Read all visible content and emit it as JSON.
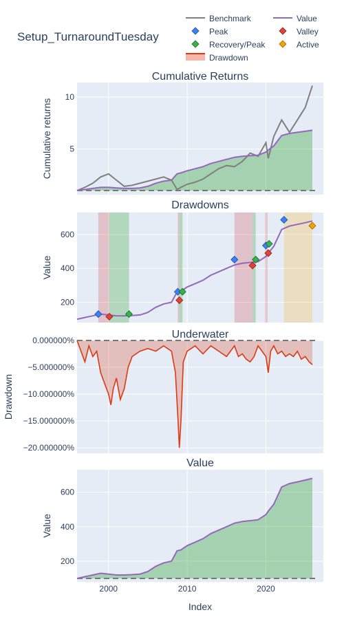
{
  "title": "Setup_TurnaroundTuesday",
  "legend": {
    "benchmark": "Benchmark",
    "value": "Value",
    "peak": "Peak",
    "valley": "Valley",
    "recovery": "Recovery/Peak",
    "active": "Active",
    "drawdown": "Drawdown"
  },
  "colors": {
    "benchmark": "#7f7f7f",
    "value": "#9467bd",
    "peak": "#1f77b4",
    "valley": "#d62728",
    "recovery": "#2ca02c",
    "active": "#ffaa00",
    "drawdown": "#dc3912",
    "plot_bg": "#e5ecf6",
    "text": "#2a3f5f"
  },
  "xlabel": "Index",
  "x_ticks": [
    "2000",
    "2010",
    "2020"
  ],
  "chart_data": [
    {
      "type": "line",
      "title": "Cumulative Returns",
      "ylabel": "Cumulative returns",
      "y_ticks": [
        "5",
        "10"
      ],
      "ylim": [
        0.6,
        11.4
      ],
      "baseline": 1,
      "x": [
        1996.0,
        1997.0,
        1998.0,
        1999.0,
        2000.0,
        2001.0,
        2002.0,
        2003.0,
        2004.0,
        2005.0,
        2006.0,
        2007.0,
        2008.0,
        2008.7,
        2009.2,
        2010.0,
        2011.0,
        2012.0,
        2013.0,
        2014.0,
        2015.0,
        2016.0,
        2017.0,
        2018.0,
        2019.0,
        2020.0,
        2020.3,
        2021.0,
        2022.0,
        2023.0,
        2024.0,
        2025.0,
        2025.9
      ],
      "series": [
        {
          "name": "Benchmark",
          "values": [
            1.0,
            1.3,
            1.7,
            2.3,
            2.6,
            2.0,
            1.4,
            1.5,
            1.7,
            1.9,
            2.1,
            2.3,
            2.0,
            1.1,
            1.3,
            1.6,
            1.8,
            2.1,
            2.6,
            3.1,
            3.4,
            3.3,
            3.8,
            4.6,
            4.3,
            5.6,
            4.1,
            6.2,
            7.8,
            6.6,
            7.8,
            9.0,
            11.1
          ]
        },
        {
          "name": "Value",
          "values": [
            1.0,
            1.1,
            1.2,
            1.3,
            1.3,
            1.25,
            1.2,
            1.2,
            1.25,
            1.4,
            1.7,
            1.9,
            2.0,
            2.6,
            2.7,
            2.9,
            3.1,
            3.3,
            3.6,
            3.8,
            4.0,
            4.2,
            4.3,
            4.35,
            4.4,
            4.7,
            4.9,
            5.3,
            6.3,
            6.5,
            6.6,
            6.7,
            6.8
          ]
        }
      ]
    },
    {
      "type": "line",
      "title": "Drawdowns",
      "ylabel": "Value",
      "y_ticks": [
        "200",
        "400",
        "600"
      ],
      "ylim": [
        80,
        730
      ],
      "x": [
        1996.0,
        1997.0,
        1998.0,
        1999.0,
        2000.0,
        2001.0,
        2002.0,
        2003.0,
        2004.0,
        2005.0,
        2006.0,
        2007.0,
        2008.0,
        2008.7,
        2009.2,
        2010.0,
        2011.0,
        2012.0,
        2013.0,
        2014.0,
        2015.0,
        2016.0,
        2017.0,
        2018.0,
        2019.0,
        2020.0,
        2020.3,
        2021.0,
        2022.0,
        2023.0,
        2024.0,
        2025.0,
        2025.9
      ],
      "values": [
        100,
        110,
        120,
        130,
        125,
        120,
        120,
        122,
        125,
        140,
        170,
        190,
        200,
        260,
        265,
        290,
        310,
        330,
        360,
        380,
        400,
        420,
        430,
        435,
        440,
        470,
        490,
        530,
        630,
        650,
        660,
        670,
        680
      ],
      "drawdown_periods": [
        {
          "start": 1998.7,
          "end": 2000.1,
          "status": "recovered"
        },
        {
          "start": 2000.1,
          "end": 2002.6,
          "status": "recovery"
        },
        {
          "start": 2008.8,
          "end": 2009.0,
          "status": "recovered"
        },
        {
          "start": 2009.0,
          "end": 2009.4,
          "status": "recovery"
        },
        {
          "start": 2016.0,
          "end": 2018.3,
          "status": "recovered"
        },
        {
          "start": 2018.3,
          "end": 2018.7,
          "status": "recovery"
        },
        {
          "start": 2019.9,
          "end": 2020.2,
          "status": "recovered"
        },
        {
          "start": 2022.3,
          "end": 2025.9,
          "status": "active"
        }
      ],
      "markers": [
        {
          "kind": "peak",
          "x": 1998.7,
          "y": 130
        },
        {
          "kind": "valley",
          "x": 2000.1,
          "y": 115
        },
        {
          "kind": "recovery",
          "x": 2002.6,
          "y": 130
        },
        {
          "kind": "peak",
          "x": 2008.8,
          "y": 262
        },
        {
          "kind": "valley",
          "x": 2009.0,
          "y": 212
        },
        {
          "kind": "recovery",
          "x": 2009.4,
          "y": 262
        },
        {
          "kind": "peak",
          "x": 2016.0,
          "y": 452
        },
        {
          "kind": "valley",
          "x": 2018.3,
          "y": 417
        },
        {
          "kind": "recovery",
          "x": 2018.7,
          "y": 452
        },
        {
          "kind": "peak",
          "x": 2020.0,
          "y": 535
        },
        {
          "kind": "valley",
          "x": 2020.3,
          "y": 490
        },
        {
          "kind": "recovery",
          "x": 2020.4,
          "y": 545
        },
        {
          "kind": "peak",
          "x": 2022.3,
          "y": 687
        },
        {
          "kind": "active",
          "x": 2025.9,
          "y": 652
        }
      ]
    },
    {
      "type": "area",
      "title": "Underwater",
      "ylabel": "Drawdown",
      "y_ticks": [
        "0.000000%",
        "−5.000000%",
        "−10.000000%",
        "−15.000000%",
        "−20.000000%"
      ],
      "ylim": [
        -21,
        0
      ],
      "x": [
        1996.0,
        1996.5,
        1997.0,
        1997.5,
        1998.0,
        1998.5,
        1999.0,
        1999.5,
        2000.0,
        2000.3,
        2000.6,
        2001.0,
        2001.5,
        2002.0,
        2002.5,
        2003.0,
        2004.0,
        2005.0,
        2006.0,
        2007.0,
        2008.0,
        2008.5,
        2008.8,
        2009.0,
        2009.2,
        2009.5,
        2010.0,
        2011.0,
        2012.0,
        2013.0,
        2014.0,
        2015.0,
        2016.0,
        2016.5,
        2017.0,
        2017.5,
        2018.0,
        2018.5,
        2019.0,
        2019.5,
        2020.0,
        2020.3,
        2020.6,
        2021.0,
        2021.5,
        2022.0,
        2022.5,
        2023.0,
        2023.5,
        2024.0,
        2024.5,
        2025.0,
        2025.5,
        2025.9
      ],
      "values": [
        0,
        -2,
        -4,
        -1,
        -3,
        -2,
        -6,
        -8,
        -10,
        -12,
        -9,
        -7,
        -11,
        -9,
        -5,
        -3,
        -2,
        -1.5,
        -2,
        -1,
        -2,
        -6,
        -14,
        -20,
        -15,
        -4,
        -2,
        -1,
        -2.5,
        -1,
        -2,
        -3,
        -1,
        -3,
        -2.5,
        -3.5,
        -4,
        -3,
        -1,
        -2,
        -3,
        -6,
        -2,
        -1,
        -2.5,
        -2,
        -3,
        -2.5,
        -3,
        -2,
        -3.5,
        -3,
        -4,
        -4.5
      ]
    },
    {
      "type": "area",
      "title": "Value",
      "ylabel": "Value",
      "y_ticks": [
        "200",
        "400",
        "600"
      ],
      "ylim": [
        80,
        730
      ],
      "baseline": 100,
      "x": [
        1996.0,
        1997.0,
        1998.0,
        1999.0,
        2000.0,
        2001.0,
        2002.0,
        2003.0,
        2004.0,
        2005.0,
        2006.0,
        2007.0,
        2008.0,
        2008.7,
        2009.2,
        2010.0,
        2011.0,
        2012.0,
        2013.0,
        2014.0,
        2015.0,
        2016.0,
        2017.0,
        2018.0,
        2019.0,
        2020.0,
        2020.3,
        2021.0,
        2022.0,
        2023.0,
        2024.0,
        2025.0,
        2025.9
      ],
      "values": [
        100,
        110,
        120,
        130,
        125,
        120,
        120,
        122,
        125,
        140,
        170,
        190,
        200,
        260,
        265,
        290,
        310,
        330,
        360,
        380,
        400,
        420,
        430,
        435,
        440,
        470,
        490,
        530,
        630,
        650,
        660,
        670,
        680
      ]
    }
  ]
}
